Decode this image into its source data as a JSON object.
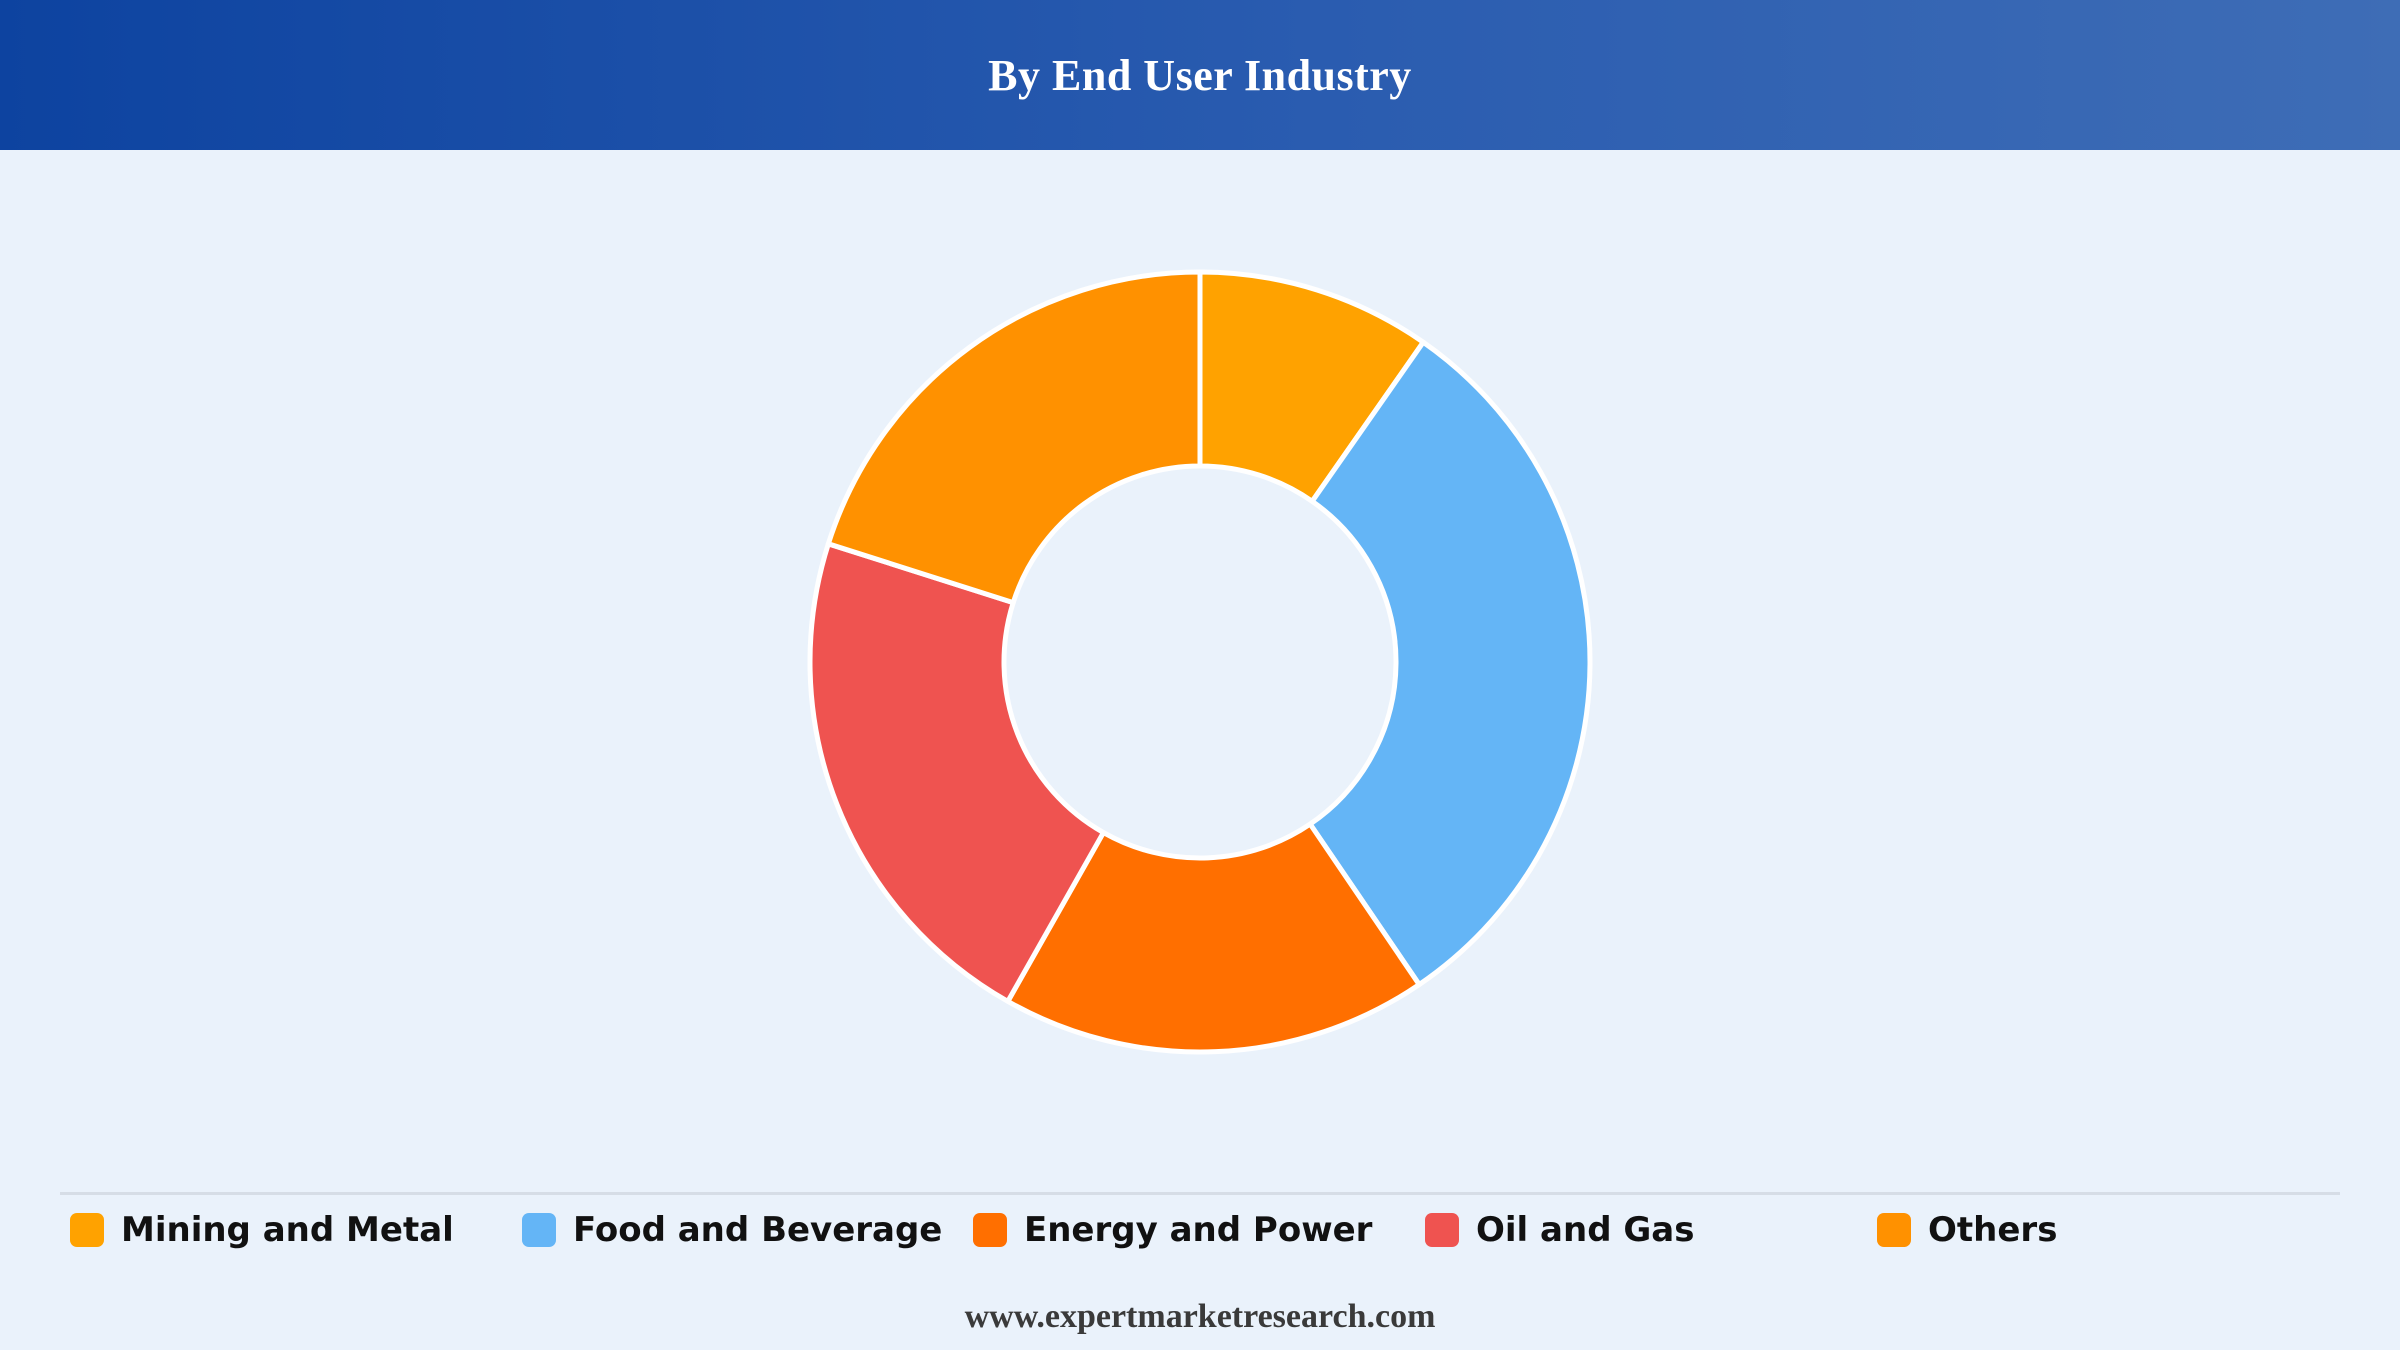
{
  "header": {
    "title": "By End User Industry"
  },
  "chart_data": {
    "type": "pie",
    "donut": true,
    "title": "By End User Industry",
    "start_angle_deg": 0,
    "direction": "clockwise",
    "legend_position": "bottom",
    "series": [
      {
        "name": "Mining and Metal",
        "value": 9.7,
        "color": "#ffa200"
      },
      {
        "name": "Food and Beverage",
        "value": 30.8,
        "color": "#64b5f6"
      },
      {
        "name": "Energy and Power",
        "value": 17.7,
        "color": "#ff6f00"
      },
      {
        "name": "Oil and Gas",
        "value": 21.7,
        "color": "#ef5350"
      },
      {
        "name": "Others",
        "value": 20.1,
        "color": "#ff9100"
      }
    ]
  },
  "footer": {
    "text": "www.expertmarketresearch.com"
  }
}
